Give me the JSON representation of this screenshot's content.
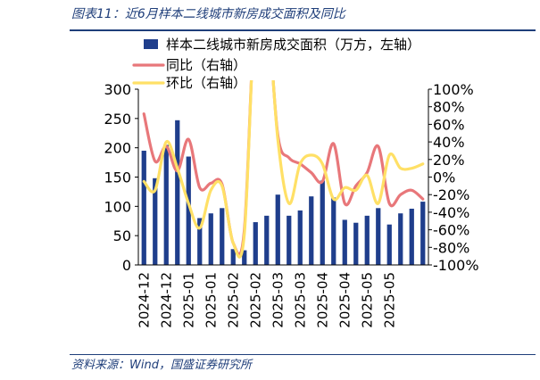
{
  "header": {
    "title": "图表11：近6月样本二线城市新房成交面积及同比"
  },
  "footer": {
    "source": "资料来源：Wind，国盛证券研究所"
  },
  "colors": {
    "bar": "#1F3E8C",
    "yoy": "#E8777A",
    "mom": "#FFE066",
    "rule": "#1F3E7A"
  },
  "chart_data": {
    "type": "bar",
    "x_tick_labels": [
      "2024-12",
      "2024-12",
      "2025-01",
      "2025-01",
      "2025-02",
      "2025-02",
      "2025-03",
      "2025-03",
      "2025-04",
      "2025-04",
      "2025-05",
      "2025-05"
    ],
    "y_left": {
      "ylim": [
        0,
        300
      ],
      "ticks": [
        "0",
        "50",
        "100",
        "150",
        "200",
        "250",
        "300"
      ]
    },
    "y_right": {
      "ylim": [
        -100,
        100
      ],
      "ticks": [
        "-100%",
        "-80%",
        "-60%",
        "-40%",
        "-20%",
        "0%",
        "20%",
        "40%",
        "60%",
        "80%",
        "100%"
      ]
    },
    "legend_position": "top-left",
    "grid": false,
    "series": [
      {
        "name": "样本二线城市新房成交面积（万方，左轴）",
        "kind": "bar",
        "axis": "left",
        "values": [
          195,
          148,
          205,
          247,
          185,
          80,
          88,
          97,
          27,
          25,
          73,
          84,
          120,
          84,
          93,
          117,
          144,
          115,
          77,
          72,
          84,
          97,
          69,
          88,
          96,
          108
        ]
      },
      {
        "name": "同比（右轴）",
        "kind": "line",
        "axis": "right",
        "values": [
          72,
          18,
          35,
          7,
          43,
          -12,
          -7,
          -8,
          -75,
          -60,
          200,
          200,
          48,
          22,
          15,
          5,
          -5,
          38,
          -30,
          -10,
          5,
          35,
          -30,
          -20,
          -15,
          -25
        ]
      },
      {
        "name": "环比（右轴）",
        "kind": "line",
        "axis": "right",
        "values": [
          -5,
          -15,
          40,
          10,
          -30,
          -58,
          -15,
          -10,
          -75,
          -65,
          200,
          200,
          43,
          -30,
          15,
          25,
          15,
          -25,
          -12,
          -15,
          2,
          -30,
          25,
          10,
          10,
          15
        ]
      }
    ]
  }
}
